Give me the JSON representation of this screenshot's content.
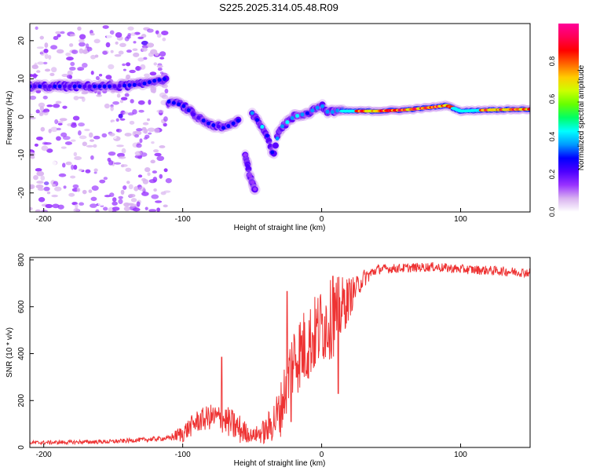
{
  "title": "S225.2025.314.05.48.R09",
  "chart_data": [
    {
      "type": "heatmap",
      "xlabel": "Height of straight line (km)",
      "ylabel": "Frequency (Hz)",
      "xlim": [
        -210,
        150
      ],
      "ylim": [
        -25,
        24.5
      ],
      "xticks": [
        -200,
        -100,
        0,
        100
      ],
      "yticks": [
        -20,
        -10,
        0,
        10,
        20
      ],
      "colorbar": {
        "label": "Normalized spectral amplitude",
        "range": [
          0,
          1
        ],
        "ticks": [
          0.0,
          0.2,
          0.4,
          0.6,
          0.8
        ],
        "colormap": [
          "#ffffff",
          "#d9b3f0",
          "#9933ff",
          "#4d00ff",
          "#0000ff",
          "#0099ff",
          "#00ffff",
          "#00ff66",
          "#66ff00",
          "#ccff00",
          "#ffcc00",
          "#ff6600",
          "#ff0000",
          "#ff0055",
          "#ff0099"
        ]
      },
      "features": [
        {
          "name": "noise",
          "x_range": [
            -210,
            -110
          ],
          "y_range": [
            -25,
            24
          ],
          "amplitude": 0.15
        },
        {
          "name": "band-10hz",
          "points": [
            [
              -210,
              8
            ],
            [
              -180,
              8
            ],
            [
              -150,
              8
            ],
            [
              -130,
              8.5
            ],
            [
              -120,
              9.5
            ],
            [
              -112,
              10
            ]
          ],
          "amplitude": 0.3
        },
        {
          "name": "descending-branch",
          "points": [
            [
              -110,
              4
            ],
            [
              -100,
              3
            ],
            [
              -90,
              0
            ],
            [
              -80,
              -2
            ],
            [
              -70,
              -3
            ],
            [
              -60,
              -1
            ]
          ],
          "amplitude": 0.3
        },
        {
          "name": "lower-branch",
          "points": [
            [
              -55,
              -10
            ],
            [
              -52,
              -15
            ],
            [
              -48,
              -19
            ]
          ],
          "amplitude": 0.2
        },
        {
          "name": "v-shape",
          "points": [
            [
              -50,
              1
            ],
            [
              -40,
              -4
            ],
            [
              -35,
              -10
            ],
            [
              -30,
              -3
            ],
            [
              -20,
              0
            ],
            [
              -10,
              1
            ],
            [
              0,
              3
            ],
            [
              5,
              1
            ],
            [
              15,
              2
            ]
          ],
          "amplitude": 0.4
        },
        {
          "name": "steady-band",
          "points": [
            [
              15,
              1.5
            ],
            [
              40,
              1.5
            ],
            [
              60,
              1.8
            ],
            [
              80,
              2.5
            ],
            [
              90,
              3
            ],
            [
              100,
              1.5
            ],
            [
              120,
              1.8
            ],
            [
              150,
              2
            ]
          ],
          "amplitude": 0.9
        }
      ]
    },
    {
      "type": "line",
      "xlabel": "Height of straight line (km)",
      "ylabel": "SNR (10 * v/v)",
      "xlim": [
        -210,
        150
      ],
      "ylim": [
        0,
        810
      ],
      "xticks": [
        -200,
        -100,
        0,
        100
      ],
      "yticks": [
        0,
        200,
        400,
        600,
        800
      ],
      "color": "#ee3333",
      "envelope": [
        [
          -210,
          20
        ],
        [
          -150,
          25
        ],
        [
          -110,
          40
        ],
        [
          -100,
          60
        ],
        [
          -90,
          110
        ],
        [
          -80,
          130
        ],
        [
          -70,
          120
        ],
        [
          -60,
          80
        ],
        [
          -50,
          50
        ],
        [
          -40,
          70
        ],
        [
          -30,
          150
        ],
        [
          -25,
          280
        ],
        [
          -20,
          380
        ],
        [
          -10,
          440
        ],
        [
          0,
          520
        ],
        [
          10,
          560
        ],
        [
          20,
          640
        ],
        [
          30,
          720
        ],
        [
          40,
          760
        ],
        [
          60,
          765
        ],
        [
          80,
          770
        ],
        [
          100,
          760
        ],
        [
          120,
          755
        ],
        [
          150,
          745
        ]
      ],
      "noise_amplitude": [
        [
          -210,
          8
        ],
        [
          -110,
          10
        ],
        [
          -100,
          40
        ],
        [
          -60,
          70
        ],
        [
          -50,
          25
        ],
        [
          -40,
          60
        ],
        [
          -20,
          170
        ],
        [
          10,
          170
        ],
        [
          25,
          50
        ],
        [
          40,
          20
        ],
        [
          150,
          20
        ]
      ],
      "peaks": [
        [
          -72,
          385
        ],
        [
          -25,
          665
        ],
        [
          8,
          730
        ],
        [
          -22,
          110
        ],
        [
          12,
          230
        ]
      ]
    }
  ]
}
